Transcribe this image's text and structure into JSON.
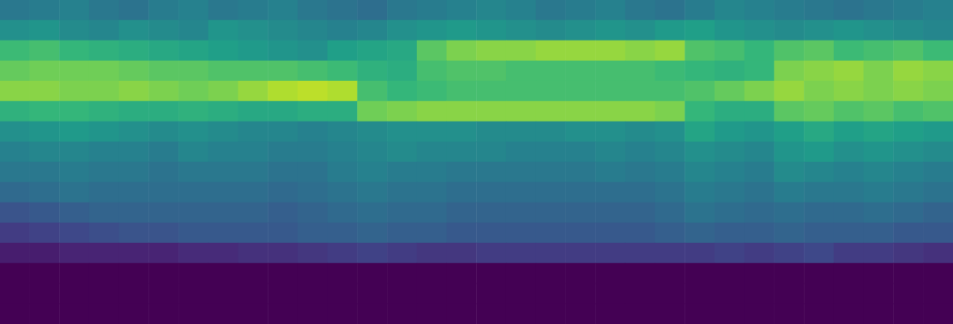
{
  "chart_data": {
    "type": "heatmap",
    "tick_labels": false,
    "zlim": [
      0,
      100
    ],
    "cells": [
      [
        40,
        42,
        44,
        40,
        38,
        42,
        44,
        40,
        42,
        44,
        40,
        38,
        36,
        40,
        42,
        44,
        46,
        44,
        40,
        42,
        44,
        40,
        38,
        42,
        46,
        44,
        42,
        40,
        38,
        40,
        42,
        44
      ],
      [
        50,
        52,
        48,
        46,
        50,
        48,
        46,
        52,
        50,
        48,
        46,
        44,
        46,
        50,
        52,
        54,
        52,
        50,
        48,
        50,
        52,
        50,
        54,
        56,
        52,
        50,
        48,
        50,
        52,
        50,
        48,
        46
      ],
      [
        68,
        70,
        66,
        64,
        62,
        60,
        58,
        56,
        54,
        52,
        50,
        56,
        58,
        60,
        74,
        80,
        82,
        82,
        84,
        84,
        84,
        82,
        84,
        72,
        70,
        66,
        72,
        74,
        68,
        70,
        72,
        68
      ],
      [
        76,
        78,
        78,
        78,
        76,
        74,
        74,
        72,
        72,
        72,
        70,
        68,
        64,
        62,
        70,
        72,
        72,
        70,
        70,
        70,
        70,
        70,
        68,
        66,
        64,
        66,
        80,
        82,
        84,
        80,
        84,
        82
      ],
      [
        82,
        82,
        80,
        80,
        82,
        80,
        78,
        80,
        84,
        88,
        90,
        88,
        70,
        66,
        68,
        70,
        70,
        70,
        70,
        70,
        70,
        70,
        70,
        72,
        76,
        80,
        84,
        80,
        82,
        80,
        82,
        80
      ],
      [
        64,
        66,
        66,
        64,
        62,
        62,
        64,
        62,
        60,
        60,
        62,
        62,
        78,
        80,
        82,
        82,
        82,
        82,
        82,
        82,
        82,
        82,
        80,
        66,
        62,
        62,
        74,
        76,
        72,
        74,
        70,
        72
      ],
      [
        50,
        52,
        54,
        52,
        50,
        48,
        50,
        48,
        46,
        46,
        44,
        46,
        48,
        50,
        50,
        50,
        48,
        48,
        48,
        50,
        50,
        48,
        50,
        58,
        54,
        52,
        56,
        60,
        56,
        58,
        56,
        54
      ],
      [
        44,
        46,
        46,
        44,
        44,
        42,
        46,
        44,
        44,
        42,
        42,
        44,
        46,
        48,
        46,
        46,
        46,
        44,
        44,
        44,
        46,
        44,
        46,
        50,
        48,
        46,
        52,
        54,
        50,
        52,
        50,
        48
      ],
      [
        40,
        40,
        42,
        40,
        40,
        38,
        40,
        40,
        40,
        38,
        38,
        42,
        44,
        42,
        42,
        40,
        40,
        40,
        40,
        40,
        42,
        40,
        42,
        46,
        44,
        42,
        48,
        46,
        44,
        46,
        44,
        42
      ],
      [
        34,
        36,
        38,
        36,
        36,
        36,
        36,
        36,
        36,
        34,
        36,
        38,
        40,
        38,
        38,
        36,
        36,
        36,
        36,
        36,
        36,
        36,
        38,
        42,
        40,
        38,
        42,
        40,
        40,
        42,
        40,
        38
      ],
      [
        26,
        28,
        30,
        32,
        32,
        32,
        32,
        32,
        32,
        30,
        32,
        34,
        36,
        34,
        34,
        32,
        32,
        32,
        32,
        32,
        32,
        32,
        34,
        38,
        36,
        34,
        36,
        34,
        34,
        36,
        34,
        32
      ],
      [
        18,
        20,
        22,
        24,
        26,
        26,
        28,
        28,
        28,
        28,
        30,
        30,
        32,
        30,
        30,
        28,
        28,
        28,
        28,
        28,
        28,
        28,
        30,
        32,
        30,
        30,
        32,
        30,
        30,
        30,
        28,
        28
      ],
      [
        8,
        8,
        10,
        10,
        10,
        10,
        12,
        12,
        14,
        14,
        16,
        18,
        20,
        18,
        16,
        16,
        18,
        18,
        18,
        18,
        18,
        18,
        18,
        18,
        20,
        18,
        20,
        22,
        18,
        18,
        16,
        14
      ],
      [
        0,
        0,
        0,
        0,
        0,
        0,
        0,
        0,
        0,
        0,
        0,
        0,
        0,
        0,
        0,
        0,
        0,
        0,
        0,
        0,
        0,
        0,
        0,
        0,
        0,
        0,
        0,
        0,
        0,
        0,
        0,
        0
      ],
      [
        0,
        0,
        0,
        0,
        0,
        0,
        0,
        0,
        0,
        0,
        0,
        0,
        0,
        0,
        0,
        0,
        0,
        0,
        0,
        0,
        0,
        0,
        0,
        0,
        0,
        0,
        0,
        0,
        0,
        0,
        0,
        0
      ],
      [
        0,
        0,
        0,
        0,
        0,
        0,
        0,
        0,
        0,
        0,
        0,
        0,
        0,
        0,
        0,
        0,
        0,
        0,
        0,
        0,
        0,
        0,
        0,
        0,
        0,
        0,
        0,
        0,
        0,
        0,
        0,
        0
      ]
    ]
  }
}
